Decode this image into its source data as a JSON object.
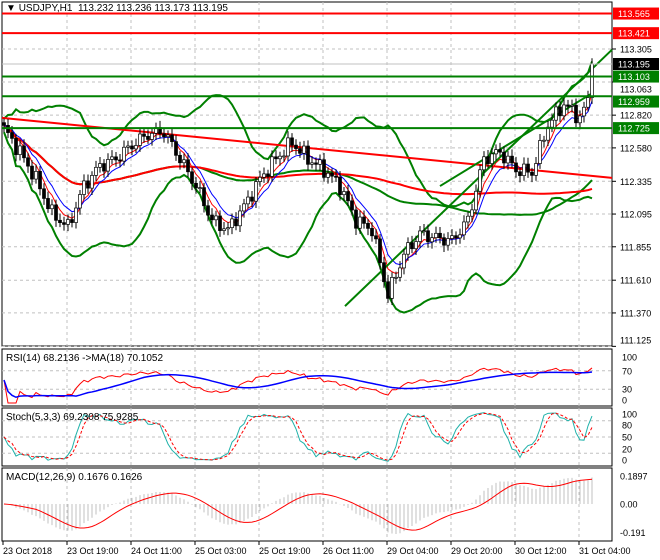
{
  "header": {
    "symbol": "USDJPY,H1",
    "ohlc": "113.232 113.236 113.173 113.195"
  },
  "indicators": {
    "rsi": "RSI(14) 68.2136  ->MA(18) 70.1052",
    "stoch": "Stoch(5,3,3) 69.2308 75.9285",
    "macd": "MACD(12,26,9) 0.1676 0.1626"
  },
  "colors": {
    "resistance": "#ff0000",
    "support": "#008000",
    "bands": "#008000",
    "bull": "#ffffff",
    "bear": "#000000",
    "rsi": "#ff0000",
    "rsi_ma": "#0000ff",
    "stoch_main": "#20b2aa",
    "stoch_signal": "#ff0000",
    "macd_hist": "#c0c0c0",
    "macd_signal": "#ff0000"
  },
  "chart_data": {
    "type": "candlestick",
    "symbol": "USDJPY",
    "timeframe": "H1",
    "ylim": [
      111.125,
      113.565
    ],
    "price_ticks": [
      "113.305",
      "113.063",
      "112.820",
      "112.580",
      "112.335",
      "112.095",
      "111.855",
      "111.610",
      "111.370",
      "111.125"
    ],
    "time_labels": [
      "23 Oct 2018",
      "23 Oct 19:00",
      "24 Oct 11:00",
      "25 Oct 03:00",
      "25 Oct 19:00",
      "26 Oct 11:00",
      "29 Oct 04:00",
      "29 Oct 20:00",
      "30 Oct 12:00",
      "31 Oct 04:00"
    ],
    "closes_4h": [
      112.72,
      112.55,
      112.35,
      112.1,
      112.0,
      112.3,
      112.45,
      112.5,
      112.6,
      112.68,
      112.7,
      112.5,
      112.3,
      112.05,
      111.98,
      112.15,
      112.35,
      112.5,
      112.62,
      112.5,
      112.42,
      112.3,
      112.05,
      111.98,
      111.5,
      111.8,
      111.95,
      111.92,
      111.9,
      112.05,
      112.5,
      112.55,
      112.42,
      112.4,
      112.75,
      112.9,
      112.8,
      113.05,
      113.2,
      113.195
    ],
    "current_price": {
      "label": "113.195",
      "value": 113.195
    },
    "horizontal_levels": [
      {
        "label": "113.565",
        "value": 113.565,
        "kind": "resistance"
      },
      {
        "label": "113.421",
        "value": 113.421,
        "kind": "resistance"
      },
      {
        "label": "113.103",
        "value": 113.103,
        "kind": "support"
      },
      {
        "label": "112.959",
        "value": 112.959,
        "kind": "support"
      },
      {
        "label": "112.725",
        "value": 112.725,
        "kind": "support"
      }
    ],
    "rsi_levels": [
      "100",
      "70",
      "30",
      "0"
    ],
    "stoch_levels": [
      "100",
      "80",
      "50",
      "20",
      "0"
    ],
    "macd_levels": [
      "0.1897",
      "0.00",
      "-0.191"
    ],
    "grid": true
  }
}
